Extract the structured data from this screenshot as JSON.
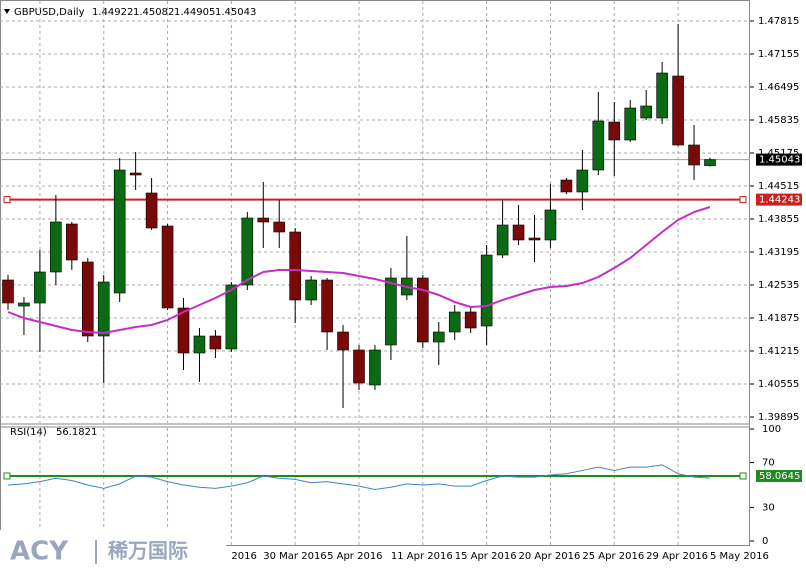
{
  "chart_data": [
    {
      "type": "candlestick",
      "title": "GBPUSD,Daily",
      "categories": [
        null,
        null,
        null,
        null,
        null,
        null,
        null,
        null,
        null,
        null,
        null,
        null,
        null,
        null,
        "2016",
        null,
        "30 Mar 2016",
        null,
        null,
        null,
        "5 Apr 2016",
        null,
        null,
        null,
        "11 Apr 2016",
        null,
        null,
        null,
        "15 Apr 2016",
        null,
        null,
        null,
        "20 Apr 2016",
        null,
        null,
        null,
        "25 Apr 2016",
        null,
        null,
        null,
        "29 Apr 2016",
        null,
        null,
        null,
        "5 May 2016"
      ],
      "open": [
        1.42635,
        1.42115,
        1.42175,
        1.42795,
        1.43755,
        1.42995,
        1.41515,
        1.42375,
        1.44775,
        1.44375,
        1.43715,
        1.42075,
        1.41175,
        1.41515,
        1.41255,
        1.42535,
        1.43875,
        1.43795,
        1.43595,
        1.42235,
        1.42635,
        1.41595,
        1.41235,
        1.40535,
        1.41335,
        1.42335,
        1.42675,
        1.41395,
        1.41595,
        1.41995,
        1.41715,
        1.43135,
        1.43735,
        1.43475,
        1.43435,
        1.44635,
        1.44395,
        1.44835,
        1.45795,
        1.45435,
        1.45875,
        1.45875,
        1.46715,
        1.45335,
        1.44922
      ],
      "high": [
        1.42735,
        1.42295,
        1.43235,
        1.44335,
        1.43795,
        1.43075,
        1.42735,
        1.45075,
        1.45195,
        1.44675,
        1.43755,
        1.42275,
        1.41675,
        1.41635,
        1.42595,
        1.43995,
        1.44595,
        1.44235,
        1.43675,
        1.42715,
        1.42675,
        1.41735,
        1.41335,
        1.41335,
        1.42875,
        1.43515,
        1.42735,
        1.41795,
        1.42135,
        1.42075,
        1.43335,
        1.44235,
        1.44135,
        1.43935,
        1.44555,
        1.44675,
        1.45235,
        1.46395,
        1.46195,
        1.46235,
        1.46435,
        1.46995,
        1.47755,
        1.45735,
        1.45082
      ],
      "low": [
        1.42035,
        1.41535,
        1.41195,
        1.42535,
        1.42835,
        1.41395,
        1.40575,
        1.42195,
        1.44435,
        1.43635,
        1.42035,
        1.40835,
        1.40595,
        1.41075,
        1.41195,
        1.42435,
        1.43275,
        1.43275,
        1.41775,
        1.42135,
        1.41235,
        1.40075,
        1.40435,
        1.40435,
        1.41035,
        1.42235,
        1.41275,
        1.40935,
        1.41435,
        1.41575,
        1.41335,
        1.43075,
        1.43335,
        1.42995,
        1.43275,
        1.44355,
        1.44035,
        1.44735,
        1.44715,
        1.45395,
        1.45835,
        1.45755,
        1.45315,
        1.44635,
        1.44905
      ],
      "close": [
        1.42175,
        1.42175,
        1.42795,
        1.43795,
        1.43035,
        1.41515,
        1.42595,
        1.44835,
        1.44735,
        1.43675,
        1.42075,
        1.41175,
        1.41515,
        1.41255,
        1.42535,
        1.43875,
        1.43795,
        1.43595,
        1.42235,
        1.42635,
        1.41595,
        1.41235,
        1.40575,
        1.41235,
        1.42675,
        1.42675,
        1.41395,
        1.41595,
        1.41995,
        1.41675,
        1.43135,
        1.43735,
        1.43435,
        1.43435,
        1.44035,
        1.44395,
        1.44835,
        1.45815,
        1.45435,
        1.46075,
        1.46115,
        1.46775,
        1.45335,
        1.44935,
        1.45043
      ],
      "up_color": "#0b6b12",
      "down_color": "#7a0a0a",
      "ma": {
        "color": "#c42ec4",
        "values": [
          1.41995,
          1.41875,
          1.41795,
          1.41715,
          1.41635,
          1.41595,
          1.41575,
          1.41635,
          1.41695,
          1.41735,
          1.41835,
          1.41995,
          1.42135,
          1.42275,
          1.42435,
          1.42635,
          1.42795,
          1.42835,
          1.42835,
          1.42815,
          1.42795,
          1.42775,
          1.42715,
          1.42655,
          1.42575,
          1.42495,
          1.42435,
          1.42335,
          1.42195,
          1.42095,
          1.42115,
          1.42235,
          1.42335,
          1.42435,
          1.42495,
          1.42515,
          1.42575,
          1.42695,
          1.42875,
          1.43075,
          1.43335,
          1.43595,
          1.43835,
          1.43995,
          1.44095
        ]
      },
      "hline": {
        "value": 1.44243,
        "color": "#cc2020"
      },
      "ylim": [
        1.39795,
        1.48235
      ],
      "yticks": [
        1.47815,
        1.47155,
        1.46495,
        1.45835,
        1.45175,
        1.44515,
        1.43855,
        1.43195,
        1.42535,
        1.41875,
        1.41215,
        1.40555,
        1.39895
      ],
      "grid": true
    },
    {
      "type": "line",
      "title": "RSI(14)",
      "color": "#3b86c6",
      "values": [
        50,
        51,
        53,
        56,
        54,
        50,
        47,
        51,
        58,
        57,
        53,
        50,
        48,
        47,
        49,
        52,
        58,
        56,
        55,
        52,
        53,
        51,
        49,
        46,
        48,
        51,
        50,
        51,
        49,
        49,
        54,
        58,
        57,
        57,
        59,
        60,
        63,
        66,
        63,
        66,
        66,
        68,
        60,
        57,
        56.1821
      ],
      "hline": {
        "value": 58.0645,
        "color": "#1f8a1f"
      },
      "ylim": [
        0,
        100
      ],
      "yticks": [
        100,
        70,
        30,
        0
      ],
      "grid": true
    }
  ],
  "logo": {
    "brand": "ACY",
    "name": "稀万国际"
  }
}
